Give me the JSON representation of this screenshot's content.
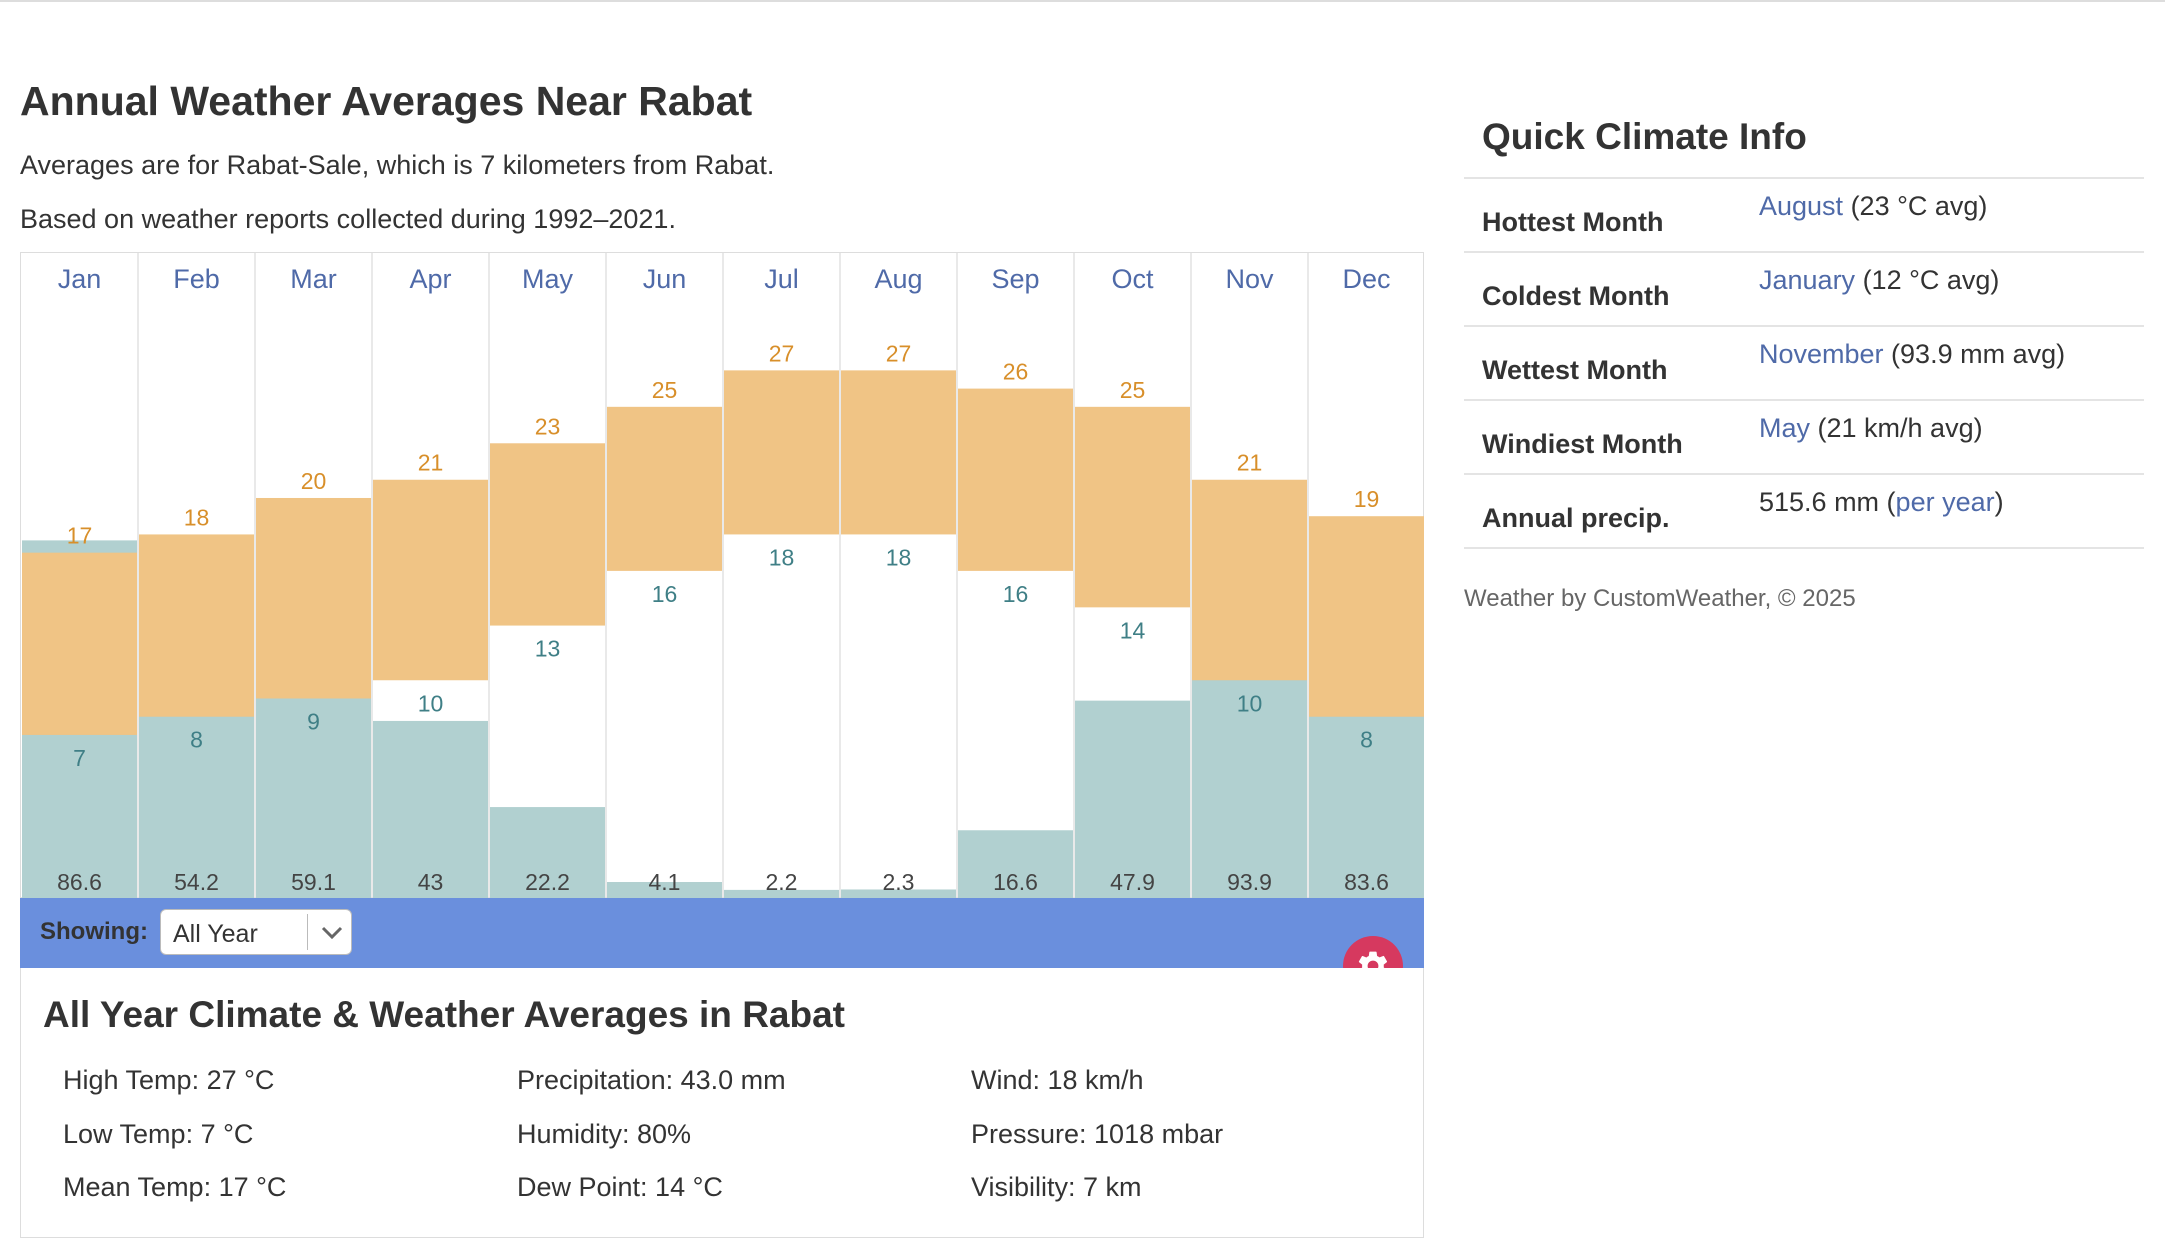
{
  "page": {
    "title": "Annual Weather Averages Near Rabat",
    "subtitle1": "Averages are for Rabat-Sale, which is 7 kilometers from Rabat.",
    "subtitle2": "Based on weather reports collected during 1992–2021."
  },
  "colors": {
    "temp_bar": "#f0c485",
    "high_label": "#d88f2a",
    "low_label": "#3f7f86",
    "precip_bar": "#b1d0d0",
    "month_label": "#4f6aa8",
    "showing_bar": "#6a8fdd",
    "gear": "#d6395f"
  },
  "chart_data": {
    "type": "bar",
    "categories": [
      "Jan",
      "Feb",
      "Mar",
      "Apr",
      "May",
      "Jun",
      "Jul",
      "Aug",
      "Sep",
      "Oct",
      "Nov",
      "Dec"
    ],
    "series": [
      {
        "values": [
          17,
          18,
          20,
          21,
          23,
          25,
          27,
          27,
          26,
          25,
          21,
          19
        ]
      },
      {
        "values": [
          7,
          8,
          9,
          10,
          13,
          16,
          18,
          18,
          16,
          14,
          10,
          8
        ]
      },
      {
        "values": [
          86.6,
          54.2,
          59.1,
          43,
          22.2,
          4.1,
          2.2,
          2.3,
          16.6,
          47.9,
          93.9,
          83.6
        ]
      }
    ],
    "temp_range": [
      -2,
      33
    ],
    "precip_range": [
      0,
      156
    ],
    "grid": false
  },
  "controls": {
    "showing_label": "Showing:",
    "showing_value": "All Year",
    "gear_icon": "gear-icon"
  },
  "summary": {
    "heading": "All Year Climate & Weather Averages in Rabat",
    "high_temp": "High Temp: 27 °C",
    "low_temp": "Low Temp: 7 °C",
    "mean_temp": "Mean Temp: 17 °C",
    "precipitation": "Precipitation: 43.0 mm",
    "humidity": "Humidity: 80%",
    "dew_point": "Dew Point: 14 °C",
    "wind": "Wind: 18 km/h",
    "pressure": "Pressure: 1018 mbar",
    "visibility": "Visibility: 7 km"
  },
  "quick_climate": {
    "title": "Quick Climate Info",
    "rows": [
      {
        "label": "Hottest Month",
        "link": "August",
        "rest": " (23 °C avg)"
      },
      {
        "label": "Coldest Month",
        "link": "January",
        "rest": " (12 °C avg)"
      },
      {
        "label": "Wettest Month",
        "link": "November",
        "rest": " (93.9 mm avg)"
      },
      {
        "label": "Windiest Month",
        "link": "May",
        "rest": " (21 km/h avg)"
      }
    ],
    "annual": {
      "label": "Annual precip.",
      "pre": "515.6 mm (",
      "link": "per year",
      "post": ")"
    },
    "credit": "Weather by CustomWeather, © 2025"
  }
}
